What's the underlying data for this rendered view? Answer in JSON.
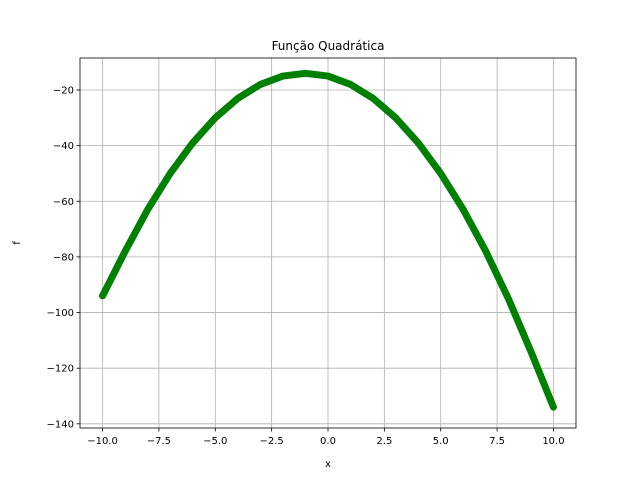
{
  "chart_data": {
    "type": "line",
    "title": "Função Quadrática",
    "xlabel": "x",
    "ylabel": "f",
    "xlim": [
      -11,
      11
    ],
    "ylim": [
      -141.5,
      -8.5
    ],
    "x_ticks": [
      -10.0,
      -7.5,
      -5.0,
      -2.5,
      0.0,
      2.5,
      5.0,
      7.5,
      10.0
    ],
    "x_tick_labels": [
      "−10.0",
      "−7.5",
      "−5.0",
      "−2.5",
      "0.0",
      "2.5",
      "5.0",
      "7.5",
      "10.0"
    ],
    "y_ticks": [
      -140,
      -120,
      -100,
      -80,
      -60,
      -40,
      -20
    ],
    "y_tick_labels": [
      "−140",
      "−120",
      "−100",
      "−80",
      "−60",
      "−40",
      "−20"
    ],
    "grid": true,
    "series": [
      {
        "color": "#008000",
        "x": [
          -10,
          -9,
          -8,
          -7,
          -6,
          -5,
          -4,
          -3,
          -2,
          -1,
          0,
          1,
          2,
          3,
          4,
          5,
          6,
          7,
          8,
          9,
          10
        ],
        "y": [
          -94,
          -78,
          -63,
          -50,
          -39,
          -30,
          -23,
          -18,
          -15,
          -14,
          -15,
          -18,
          -23,
          -30,
          -39,
          -50,
          -63,
          -78,
          -95,
          -114,
          -134
        ]
      }
    ]
  }
}
